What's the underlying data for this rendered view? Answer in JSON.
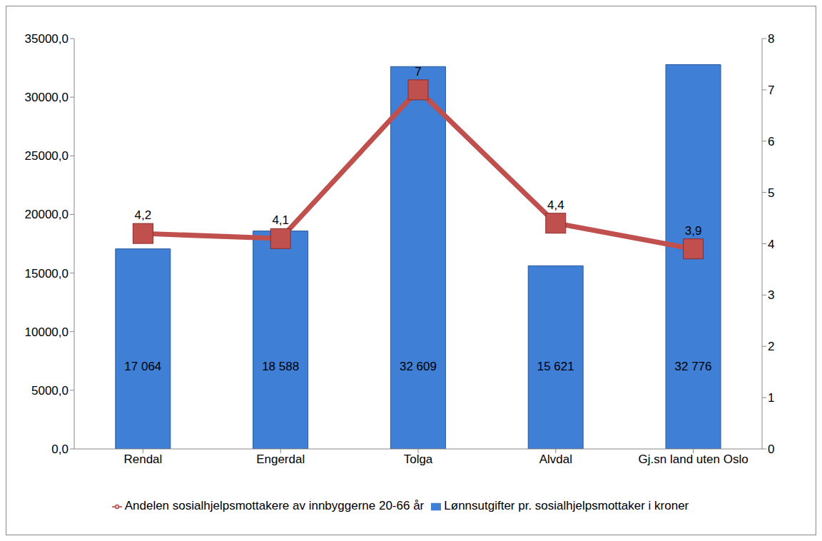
{
  "chart_data": {
    "type": "bar",
    "categories": [
      "Rendal",
      "Engerdal",
      "Tolga",
      "Alvdal",
      "Gj.sn land uten Oslo"
    ],
    "series": [
      {
        "name": "Lønnsutgifter pr. sosialhjelpsmottaker i kroner",
        "type": "bar",
        "color": "#3f7fd6",
        "values": [
          17064,
          18588,
          32609,
          15621,
          32776
        ],
        "value_labels": [
          "17 064",
          "18 588",
          "32 609",
          "15 621",
          "32 776"
        ]
      },
      {
        "name": "Andelen sosialhjelpsmottakere av innbyggerne 20-66 år",
        "type": "line",
        "axis": "y2",
        "color": "#c0504d",
        "marker": "square",
        "line_style": "solid",
        "values": [
          4.2,
          4.1,
          7,
          4.4,
          3.9
        ],
        "value_labels": [
          "4,2",
          "4,1",
          "7",
          "4,4",
          "3,9"
        ]
      }
    ],
    "ylim": [
      0,
      35000
    ],
    "yticks": [
      {
        "value": 0,
        "label": "0,0"
      },
      {
        "value": 5000,
        "label": "5000,0"
      },
      {
        "value": 10000,
        "label": "10000,0"
      },
      {
        "value": 15000,
        "label": "15000,0"
      },
      {
        "value": 20000,
        "label": "20000,0"
      },
      {
        "value": 25000,
        "label": "25000,0"
      },
      {
        "value": 30000,
        "label": "30000,0"
      },
      {
        "value": 35000,
        "label": "35000,0"
      }
    ],
    "y2lim": [
      0,
      8
    ],
    "y2ticks": [
      0,
      1,
      2,
      3,
      4,
      5,
      6,
      7,
      8
    ],
    "data_labels": true,
    "grid": false,
    "legend": "bottom"
  }
}
